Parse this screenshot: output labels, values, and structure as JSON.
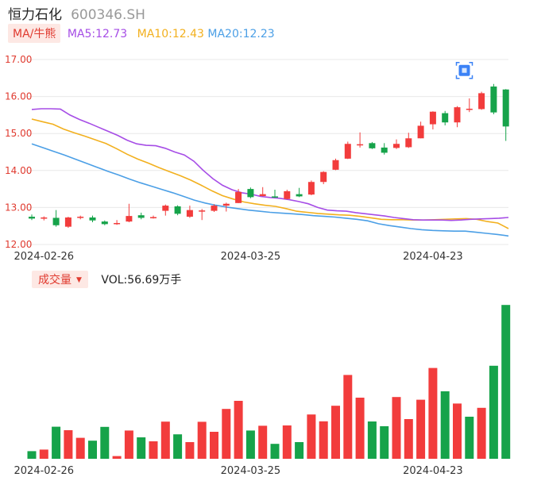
{
  "header": {
    "name": "恒力石化",
    "code": "600346.SH"
  },
  "ma_bar": {
    "type_label": "MA/牛熊",
    "ma5": "MA5:12.73",
    "ma10": "MA10:12.43",
    "ma20": "MA20:12.23"
  },
  "volume_bar": {
    "type_label": "成交量",
    "value_text": "VOL:56.69万手"
  },
  "colors": {
    "up": "#f23c3c",
    "down": "#16a34a",
    "ma5": "#a64de6",
    "ma10": "#f2b01e",
    "ma20": "#4b9fe6",
    "grid": "#e8e8e8"
  },
  "chart_data": {
    "type": "candlestick",
    "y_ticks": [
      "17.00",
      "16.00",
      "15.00",
      "14.00",
      "13.00",
      "12.00"
    ],
    "ylim": [
      12.0,
      17.0
    ],
    "x_tick_labels": [
      {
        "index": 1,
        "label": "2024-02-26"
      },
      {
        "index": 18,
        "label": "2024-03-25"
      },
      {
        "index": 33,
        "label": "2024-04-23"
      }
    ],
    "candles": [
      [
        12.75,
        12.7,
        12.81,
        12.66
      ],
      [
        12.7,
        12.73,
        12.76,
        12.65
      ],
      [
        12.72,
        12.52,
        12.93,
        12.48
      ],
      [
        12.48,
        12.73,
        12.75,
        12.45
      ],
      [
        12.73,
        12.75,
        12.78,
        12.68
      ],
      [
        12.73,
        12.65,
        12.78,
        12.6
      ],
      [
        12.62,
        12.55,
        12.65,
        12.52
      ],
      [
        12.57,
        12.58,
        12.66,
        12.53
      ],
      [
        12.62,
        12.77,
        13.1,
        12.6
      ],
      [
        12.79,
        12.72,
        12.86,
        12.68
      ],
      [
        12.71,
        12.74,
        12.78,
        12.7
      ],
      [
        12.91,
        13.05,
        13.08,
        12.78
      ],
      [
        13.03,
        12.83,
        13.06,
        12.79
      ],
      [
        12.75,
        12.93,
        13.05,
        12.72
      ],
      [
        12.9,
        12.92,
        12.96,
        12.66
      ],
      [
        12.91,
        13.05,
        13.09,
        12.88
      ],
      [
        13.05,
        13.1,
        13.13,
        12.89
      ],
      [
        13.12,
        13.42,
        13.5,
        13.12
      ],
      [
        13.5,
        13.28,
        13.54,
        13.25
      ],
      [
        13.31,
        13.36,
        13.55,
        13.3
      ],
      [
        13.3,
        13.29,
        13.48,
        13.26
      ],
      [
        13.23,
        13.44,
        13.48,
        13.22
      ],
      [
        13.36,
        13.3,
        13.53,
        13.28
      ],
      [
        13.35,
        13.69,
        13.73,
        13.33
      ],
      [
        13.69,
        13.96,
        13.98,
        13.63
      ],
      [
        14.02,
        14.28,
        14.32,
        14.01
      ],
      [
        14.32,
        14.72,
        14.78,
        14.31
      ],
      [
        14.7,
        14.71,
        15.03,
        14.62
      ],
      [
        14.74,
        14.6,
        14.77,
        14.58
      ],
      [
        14.62,
        14.48,
        14.74,
        14.43
      ],
      [
        14.61,
        14.72,
        14.84,
        14.58
      ],
      [
        14.63,
        14.87,
        15.02,
        14.61
      ],
      [
        14.87,
        15.21,
        15.32,
        14.87
      ],
      [
        15.25,
        15.59,
        15.6,
        15.11
      ],
      [
        15.55,
        15.3,
        15.61,
        15.22
      ],
      [
        15.3,
        15.71,
        15.74,
        15.17
      ],
      [
        15.66,
        15.67,
        15.95,
        15.58
      ],
      [
        15.66,
        16.09,
        16.13,
        15.64
      ],
      [
        16.27,
        15.57,
        16.34,
        15.52
      ],
      [
        16.19,
        15.19,
        16.2,
        14.8
      ]
    ],
    "ma5": [
      15.65,
      15.67,
      15.67,
      15.66,
      15.5,
      15.38,
      15.28,
      15.17,
      15.06,
      14.95,
      14.82,
      14.72,
      14.68,
      14.67,
      14.6,
      14.5,
      14.42,
      14.25,
      14.0,
      13.78,
      13.6,
      13.48,
      13.4,
      13.36,
      13.3,
      13.27,
      13.25,
      13.21,
      13.16,
      13.1,
      13.0,
      12.93,
      12.91,
      12.9,
      12.86,
      12.83,
      12.8,
      12.77,
      12.73,
      12.7,
      12.67,
      12.66,
      12.66,
      12.66,
      12.65,
      12.66,
      12.68,
      12.69,
      12.7,
      12.71,
      12.73
    ],
    "ma10": [
      15.39,
      15.32,
      15.25,
      15.12,
      15.02,
      14.93,
      14.83,
      14.73,
      14.59,
      14.44,
      14.31,
      14.2,
      14.08,
      13.97,
      13.86,
      13.74,
      13.6,
      13.45,
      13.32,
      13.23,
      13.15,
      13.1,
      13.06,
      13.03,
      12.97,
      12.9,
      12.87,
      12.84,
      12.82,
      12.8,
      12.79,
      12.76,
      12.72,
      12.68,
      12.67,
      12.67,
      12.66,
      12.66,
      12.67,
      12.68,
      12.69,
      12.7,
      12.68,
      12.62,
      12.58,
      12.43
    ],
    "ma20": [
      14.72,
      14.62,
      14.52,
      14.42,
      14.31,
      14.2,
      14.09,
      13.98,
      13.88,
      13.77,
      13.67,
      13.58,
      13.49,
      13.4,
      13.3,
      13.2,
      13.12,
      13.06,
      13.01,
      12.97,
      12.93,
      12.9,
      12.87,
      12.85,
      12.83,
      12.81,
      12.78,
      12.76,
      12.74,
      12.71,
      12.68,
      12.64,
      12.56,
      12.51,
      12.47,
      12.43,
      12.4,
      12.38,
      12.37,
      12.36,
      12.36,
      12.33,
      12.3,
      12.27,
      12.23
    ],
    "volume": {
      "unit": "万手",
      "values": [
        4.8,
        5.8,
        20.2,
        18.0,
        13.2,
        11.4,
        20.1,
        1.7,
        17.8,
        13.5,
        11.0,
        23.4,
        15.4,
        10.5,
        23.3,
        17.0,
        31.4,
        36.5,
        17.8,
        20.8,
        9.4,
        21.0,
        10.5,
        27.9,
        23.6,
        33.4,
        52.8,
        38.5,
        23.5,
        20.5,
        38.9,
        25.0,
        37.2,
        57.2,
        42.5,
        34.8,
        26.5,
        32.1,
        58.6,
        96.9
      ],
      "up": [
        false,
        true,
        false,
        true,
        true,
        false,
        false,
        true,
        true,
        false,
        true,
        true,
        false,
        true,
        true,
        true,
        true,
        true,
        false,
        true,
        false,
        true,
        false,
        true,
        true,
        true,
        true,
        true,
        false,
        false,
        true,
        true,
        true,
        true,
        false,
        true,
        false,
        true,
        false,
        false
      ],
      "ylim": [
        0,
        97
      ]
    },
    "marker_index": 35
  }
}
